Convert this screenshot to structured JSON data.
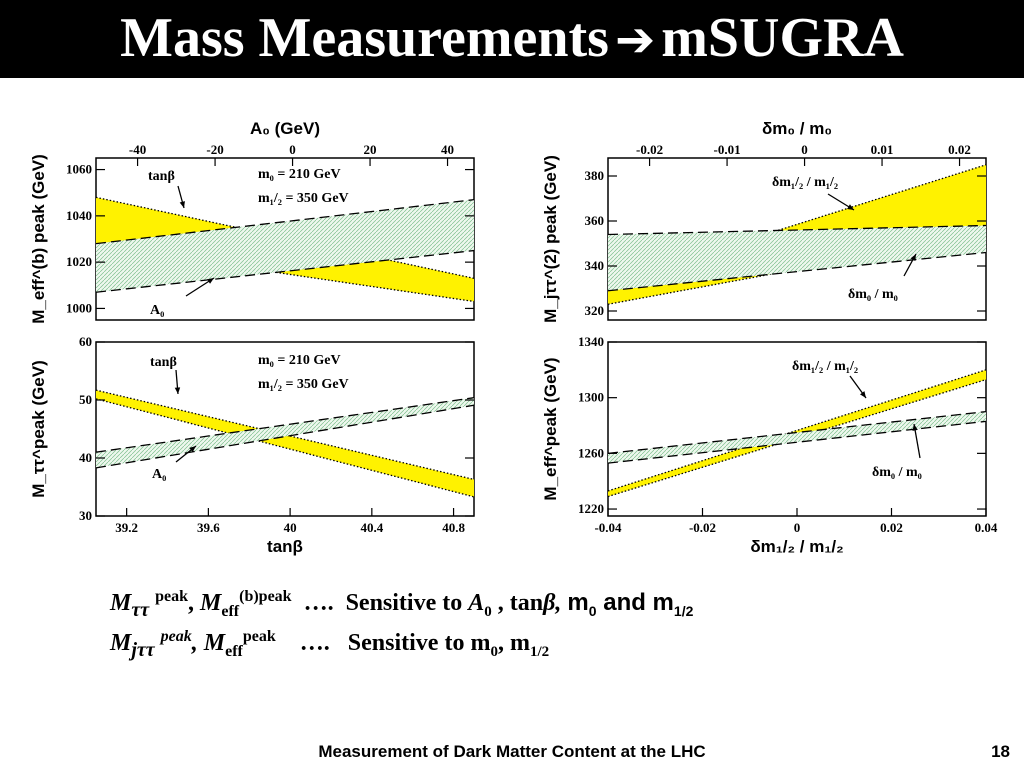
{
  "slide": {
    "title_left": "Mass Measurements",
    "title_arrow": "➔",
    "title_right": "mSUGRA",
    "footer": "Measurement of Dark Matter Content at the LHC",
    "page_number": "18",
    "caption1": {
      "m": "M",
      "tt": "ττ",
      "peak": "peak",
      "comma": ",",
      "m2": "M",
      "eff": "eff",
      "b": "(b)peak",
      "dots": "….",
      "sens": "Sensitive to",
      "a": "A",
      "zero": "0",
      "tan": ", tan",
      "beta": "β,",
      "m0": "m",
      "m0sub": "0",
      "and": "and m",
      "m12sub": "1/2"
    },
    "caption2": {
      "m": "M",
      "jtt": "jττ",
      "peak": "peak",
      "comma": ",",
      "m2": "M",
      "eff": "eff",
      "peak2": "peak",
      "dots": "….",
      "sens": "Sensitive to m",
      "sub0": "0",
      "mid": ", m",
      "sub12": "1/2"
    }
  },
  "chart_data": [
    {
      "id": "top-left",
      "type": "area",
      "top_axis_label": "A₀ (GeV)",
      "top_ticks": [
        "-40",
        "-20",
        "0",
        "20",
        "40"
      ],
      "y_label": "M_eff^(b) peak (GeV)",
      "ylim": [
        995,
        1065
      ],
      "y_ticks": [
        1000,
        1020,
        1040,
        1060
      ],
      "annotations": [
        "tanβ",
        "m₀ = 210 GeV",
        "m₁/₂ = 350 GeV",
        "A₀"
      ],
      "series": [
        {
          "name": "tanβ",
          "style": "yellow-dotted",
          "upper": [
            1048,
            1013
          ],
          "lower": [
            1027,
            1003
          ]
        },
        {
          "name": "A₀",
          "style": "green-dashed",
          "upper": [
            1028,
            1047
          ],
          "lower": [
            1007,
            1025
          ]
        }
      ]
    },
    {
      "id": "bottom-left",
      "type": "area",
      "x_label": "tanβ",
      "xlim": [
        39.05,
        40.9
      ],
      "x_ticks": [
        "39.2",
        "39.6",
        "40",
        "40.4",
        "40.8"
      ],
      "y_label": "M_ττ^peak (GeV)",
      "ylim": [
        30,
        60
      ],
      "y_ticks": [
        30,
        40,
        50,
        60
      ],
      "annotations": [
        "tanβ",
        "m₀ = 210 GeV",
        "m₁/₂ = 350 GeV",
        "A₀"
      ],
      "series": [
        {
          "name": "tanβ",
          "style": "yellow-dotted",
          "upper": [
            51.7,
            36.3
          ],
          "lower": [
            50.2,
            33.3
          ]
        },
        {
          "name": "A₀",
          "style": "green-dashed",
          "upper": [
            41,
            50.4
          ],
          "lower": [
            38.3,
            49.1
          ]
        }
      ]
    },
    {
      "id": "top-right",
      "type": "area",
      "top_axis_label": "δm₀ / m₀",
      "top_ticks": [
        "-0.02",
        "-0.01",
        "0",
        "0.01",
        "0.02"
      ],
      "y_label": "M_jττ^(2) peak (GeV)",
      "ylim": [
        316,
        388
      ],
      "y_ticks": [
        320,
        340,
        360,
        380
      ],
      "annotations": [
        "δm₁/₂ / m₁/₂",
        "δm₀ / m₀"
      ],
      "series": [
        {
          "name": "δm₁/₂ / m₁/₂",
          "style": "yellow-dotted",
          "upper": [
            332,
            385
          ],
          "lower": [
            323,
            354
          ]
        },
        {
          "name": "δm₀ / m₀",
          "style": "green-dashed",
          "upper": [
            354,
            358
          ],
          "lower": [
            329,
            346
          ]
        }
      ]
    },
    {
      "id": "bottom-right",
      "type": "area",
      "x_label": "δm₁/₂ / m₁/₂",
      "xlim": [
        -0.04,
        0.04
      ],
      "x_ticks": [
        "-0.04",
        "-0.02",
        "0",
        "0.02",
        "0.04"
      ],
      "y_label": "M_eff^peak (GeV)",
      "ylim": [
        1215,
        1340
      ],
      "y_ticks": [
        1220,
        1260,
        1300,
        1340
      ],
      "annotations": [
        "δm₁/₂ / m₁/₂",
        "δm₀ / m₀"
      ],
      "series": [
        {
          "name": "δm₁/₂ / m₁/₂",
          "style": "yellow-dotted",
          "upper": [
            1233,
            1320
          ],
          "lower": [
            1229,
            1313
          ]
        },
        {
          "name": "δm₀ / m₀",
          "style": "green-dashed",
          "upper": [
            1260,
            1290
          ],
          "lower": [
            1253,
            1283
          ]
        }
      ]
    }
  ]
}
